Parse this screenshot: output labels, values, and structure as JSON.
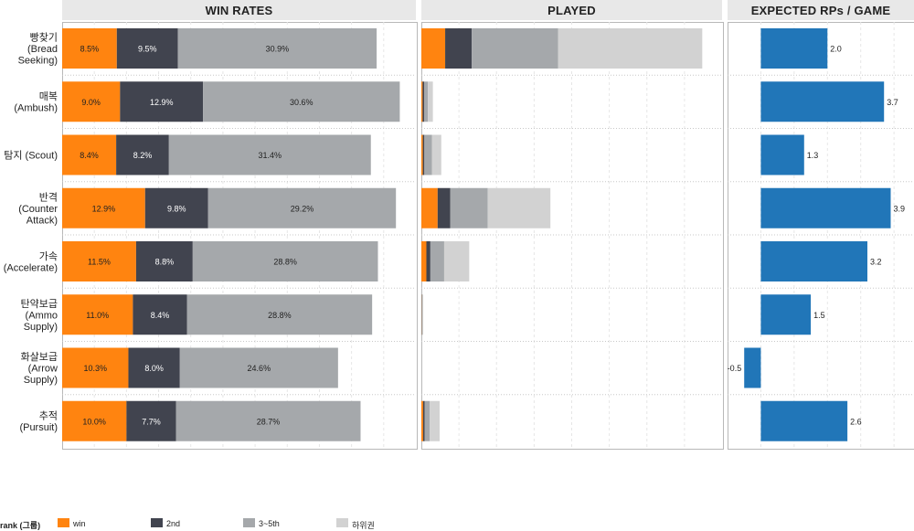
{
  "headers": {
    "win_rates": "WIN RATES",
    "played": "PLAYED",
    "expected": "EXPECTED RPs / GAME"
  },
  "colors": {
    "win": "#ff8410",
    "second": "#41444f",
    "third_fifth": "#a5a8ab",
    "lower": "#d2d2d2",
    "rp": "#2176b8"
  },
  "legend": {
    "title": "rank (그룹)",
    "items": [
      "win",
      "2nd",
      "3~5th",
      "하위권"
    ]
  },
  "chart_data": [
    {
      "type": "bar",
      "stacked": true,
      "title": "WIN RATES",
      "categories": [
        "빵찾기\n(Bread\nSeeking)",
        "매복\n(Ambush)",
        "탐지 (Scout)",
        "반격\n(Counter\nAttack)",
        "가속\n(Accelerate)",
        "탄약보급\n(Ammo\nSupply)",
        "화살보급\n(Arrow\nSupply)",
        "추적\n(Pursuit)"
      ],
      "series": [
        {
          "name": "win",
          "values": [
            8.5,
            9.0,
            8.4,
            12.9,
            11.5,
            11.0,
            10.3,
            10.0
          ],
          "labels": [
            "8.5%",
            "9.0%",
            "8.4%",
            "12.9%",
            "11.5%",
            "11.0%",
            "10.3%",
            "10.0%"
          ]
        },
        {
          "name": "2nd",
          "values": [
            9.5,
            12.9,
            8.2,
            9.8,
            8.8,
            8.4,
            8.0,
            7.7
          ],
          "labels": [
            "9.5%",
            "12.9%",
            "8.2%",
            "9.8%",
            "8.8%",
            "8.4%",
            "8.0%",
            "7.7%"
          ]
        },
        {
          "name": "3~5th",
          "values": [
            30.9,
            30.6,
            31.4,
            29.2,
            28.8,
            28.8,
            24.6,
            28.7
          ],
          "labels": [
            "30.9%",
            "30.6%",
            "31.4%",
            "29.2%",
            "28.8%",
            "28.8%",
            "24.6%",
            "28.7%"
          ]
        }
      ],
      "xlim": [
        0,
        55
      ]
    },
    {
      "type": "bar",
      "stacked": true,
      "title": "PLAYED",
      "categories": [
        "빵찾기\n(Bread\nSeeking)",
        "매복\n(Ambush)",
        "탐지 (Scout)",
        "반격\n(Counter\nAttack)",
        "가속\n(Accelerate)",
        "탄약보급\n(Ammo\nSupply)",
        "화살보급\n(Arrow\nSupply)",
        "추적\n(Pursuit)"
      ],
      "series": [
        {
          "name": "win",
          "values": [
            190,
            10,
            12,
            130,
            40,
            2,
            0,
            14
          ]
        },
        {
          "name": "2nd",
          "values": [
            212,
            12,
            12,
            100,
            32,
            2,
            0,
            12
          ]
        },
        {
          "name": "3~5th",
          "values": [
            690,
            30,
            60,
            300,
            110,
            5,
            0,
            40
          ]
        },
        {
          "name": "하위권",
          "values": [
            1150,
            40,
            75,
            500,
            200,
            6,
            0,
            80
          ]
        }
      ],
      "xlim": [
        0,
        2400
      ]
    },
    {
      "type": "bar",
      "title": "EXPECTED RPs / GAME",
      "categories": [
        "빵찾기\n(Bread\nSeeking)",
        "매복\n(Ambush)",
        "탐지 (Scout)",
        "반격\n(Counter\nAttack)",
        "가속\n(Accelerate)",
        "탄약보급\n(Ammo\nSupply)",
        "화살보급\n(Arrow\nSupply)",
        "추적\n(Pursuit)"
      ],
      "values": [
        2.0,
        3.7,
        1.3,
        3.9,
        3.2,
        1.5,
        -0.5,
        2.6
      ],
      "labels": [
        "2.0",
        "3.7",
        "1.3",
        "3.9",
        "3.2",
        "1.5",
        "-0.5",
        "2.6"
      ],
      "xlim": [
        -1.0,
        4.6
      ]
    }
  ]
}
